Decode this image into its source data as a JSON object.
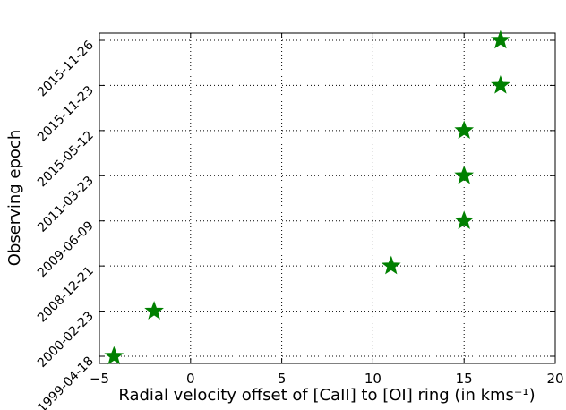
{
  "chart_data": {
    "type": "scatter",
    "x_label": "Radial velocity offset of [CaII] to [OI] ring (in kms⁻¹)",
    "y_label": "Observing epoch",
    "categories": [
      "1999-04-18",
      "2000-02-23",
      "2008-12-21",
      "2009-06-09",
      "2011-03-23",
      "2015-05-12",
      "2015-11-23",
      "2015-11-26"
    ],
    "values": [
      -4.2,
      -2,
      11,
      15,
      15,
      15,
      17,
      17
    ],
    "color": "#008000",
    "xlim": [
      -5,
      20
    ],
    "xticks": [
      {
        "value": -5,
        "label": "−5"
      },
      0,
      5,
      10,
      15,
      20
    ],
    "grid": true
  }
}
